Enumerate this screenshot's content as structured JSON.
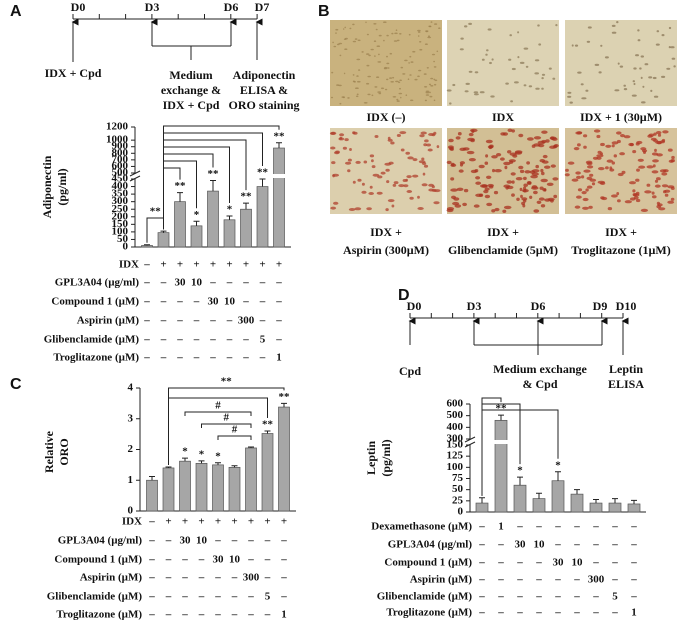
{
  "chart_data": [
    {
      "type": "bar",
      "panel_label": "A",
      "ylabel": [
        "Adiponectin",
        "(pg/ml)"
      ],
      "color": "#a6a6a6",
      "ylim": [
        0,
        1200
      ],
      "ybreak": [
        450,
        500
      ],
      "yticks": [
        0,
        50,
        100,
        150,
        200,
        250,
        300,
        350,
        400,
        450,
        500,
        600,
        700,
        800,
        900,
        1000,
        1200
      ],
      "values": [
        10,
        95,
        300,
        140,
        370,
        180,
        250,
        400,
        880
      ],
      "errors": [
        5,
        10,
        60,
        30,
        70,
        25,
        40,
        50,
        80
      ],
      "significance": [
        null,
        null,
        "**",
        "*",
        "**",
        "*",
        "**",
        "**",
        "**"
      ],
      "bracket_labels": [
        "**"
      ],
      "table": {
        "rows": [
          {
            "label": "IDX",
            "cells": [
              "–",
              "+",
              "+",
              "+",
              "+",
              "+",
              "+",
              "+",
              "+"
            ]
          },
          {
            "label": "GPL3A04 (µg/ml)",
            "cells": [
              "–",
              "–",
              "30",
              "10",
              "–",
              "–",
              "–",
              "–",
              "–"
            ]
          },
          {
            "label": "Compound 1 (µM)",
            "cells": [
              "–",
              "–",
              "–",
              "–",
              "30",
              "10",
              "–",
              "–",
              "–"
            ]
          },
          {
            "label": "Aspirin (µM)",
            "cells": [
              "–",
              "–",
              "–",
              "–",
              "–",
              "–",
              "300",
              "–",
              "–"
            ]
          },
          {
            "label": "Glibenclamide (µM)",
            "cells": [
              "–",
              "–",
              "–",
              "–",
              "–",
              "–",
              "–",
              "5",
              "–"
            ]
          },
          {
            "label": "Troglitazone (µM)",
            "cells": [
              "–",
              "–",
              "–",
              "–",
              "–",
              "–",
              "–",
              "–",
              "1"
            ]
          }
        ]
      },
      "timeline": {
        "days": [
          "D0",
          "D3",
          "D6",
          "D7"
        ],
        "notes": [
          [
            "IDX + Cpd"
          ],
          [
            "Medium",
            "exchange &",
            "IDX + Cpd"
          ],
          [
            "Adiponectin",
            "ELISA &",
            "ORO staining"
          ]
        ]
      }
    },
    {
      "type": "bar",
      "panel_label": "C",
      "ylabel": [
        "Relative",
        "ORO"
      ],
      "color": "#a6a6a6",
      "ylim": [
        0,
        4
      ],
      "yticks": [
        0,
        1,
        2,
        3,
        4
      ],
      "values": [
        1.0,
        1.4,
        1.62,
        1.55,
        1.5,
        1.42,
        2.05,
        2.52,
        3.38
      ],
      "errors": [
        0.12,
        0.03,
        0.1,
        0.08,
        0.07,
        0.05,
        0.03,
        0.08,
        0.12
      ],
      "significance": [
        null,
        null,
        "*",
        "*",
        "*",
        null,
        null,
        "**",
        "**"
      ],
      "bracket_labels": [
        "**",
        "#",
        "#",
        "#"
      ],
      "table": {
        "rows": [
          {
            "label": "IDX",
            "cells": [
              "–",
              "+",
              "+",
              "+",
              "+",
              "+",
              "+",
              "+",
              "+"
            ]
          },
          {
            "label": "GPL3A04 (µg/ml)",
            "cells": [
              "–",
              "–",
              "30",
              "10",
              "–",
              "–",
              "–",
              "–",
              "–"
            ]
          },
          {
            "label": "Compound 1 (µM)",
            "cells": [
              "–",
              "–",
              "–",
              "–",
              "30",
              "10",
              "–",
              "–",
              "–"
            ]
          },
          {
            "label": "Aspirin (µM)",
            "cells": [
              "–",
              "–",
              "–",
              "–",
              "–",
              "–",
              "300",
              "–",
              "–"
            ]
          },
          {
            "label": "Glibenclamide (µM)",
            "cells": [
              "–",
              "–",
              "–",
              "–",
              "–",
              "–",
              "–",
              "5",
              "–"
            ]
          },
          {
            "label": "Troglitazone (µM)",
            "cells": [
              "–",
              "–",
              "–",
              "–",
              "–",
              "–",
              "–",
              "–",
              "1"
            ]
          }
        ]
      }
    },
    {
      "type": "bar",
      "panel_label": "D",
      "ylabel": [
        "Leptin",
        "(pg/ml)"
      ],
      "color": "#a6a6a6",
      "ylim": [
        0,
        600
      ],
      "ybreak": [
        150,
        300
      ],
      "yticks": [
        0,
        25,
        50,
        75,
        100,
        125,
        150,
        300,
        400,
        500,
        600
      ],
      "values": [
        20,
        460,
        60,
        30,
        70,
        40,
        20,
        20,
        18
      ],
      "errors": [
        12,
        45,
        18,
        12,
        20,
        10,
        8,
        10,
        8
      ],
      "significance": [
        null,
        "**",
        "*",
        null,
        "*",
        null,
        null,
        null,
        null
      ],
      "table": {
        "rows": [
          {
            "label": "Dexamethasone (µM)",
            "cells": [
              "–",
              "1",
              "–",
              "–",
              "–",
              "–",
              "–",
              "–",
              "–"
            ]
          },
          {
            "label": "GPL3A04 (µg/ml)",
            "cells": [
              "–",
              "–",
              "30",
              "10",
              "–",
              "–",
              "–",
              "–",
              "–"
            ]
          },
          {
            "label": "Compound  1 (µM)",
            "cells": [
              "–",
              "–",
              "–",
              "–",
              "30",
              "10",
              "–",
              "–",
              "–"
            ]
          },
          {
            "label": "Aspirin (µM)",
            "cells": [
              "–",
              "–",
              "–",
              "–",
              "–",
              "–",
              "300",
              "–",
              "–"
            ]
          },
          {
            "label": "Glibenclamide (µM)",
            "cells": [
              "–",
              "–",
              "–",
              "–",
              "–",
              "–",
              "–",
              "5",
              "–"
            ]
          },
          {
            "label": "Troglitazone (µM)",
            "cells": [
              "–",
              "–",
              "–",
              "–",
              "–",
              "–",
              "–",
              "–",
              "1"
            ]
          }
        ]
      },
      "timeline": {
        "days": [
          "D0",
          "D3",
          "D6",
          "D9",
          "D10"
        ],
        "notes": [
          [
            "Cpd"
          ],
          [
            "Medium exchange",
            "& Cpd"
          ],
          [
            "Leptin",
            "ELISA"
          ]
        ]
      }
    }
  ],
  "figure_b": {
    "panel_label": "B",
    "captions": [
      [
        "IDX (–)"
      ],
      [
        "IDX"
      ],
      [
        "IDX + 1 (30µM)"
      ],
      [
        "IDX +",
        "Aspirin (300µM)"
      ],
      [
        "IDX +",
        "Glibenclamide (5µM)"
      ],
      [
        "IDX +",
        "Troglitazone (1µM)"
      ]
    ]
  }
}
